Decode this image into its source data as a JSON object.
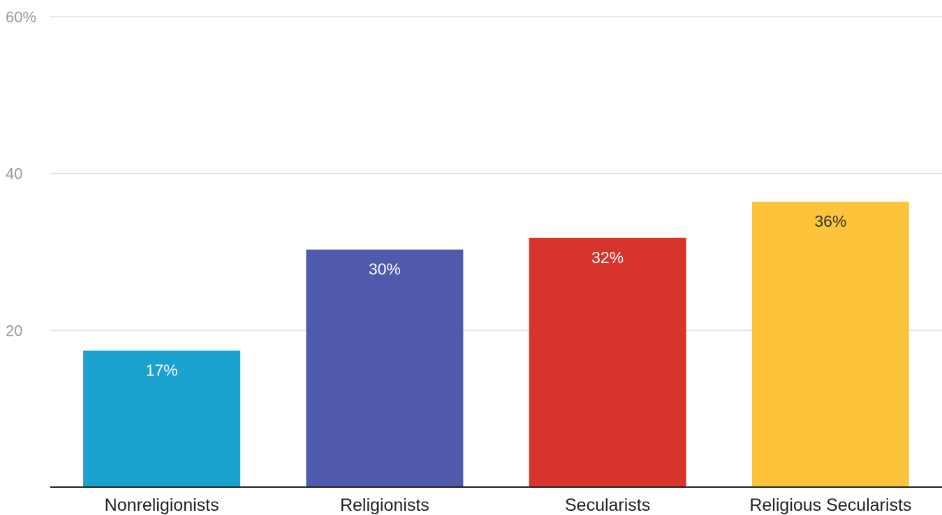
{
  "chart_data": {
    "type": "bar",
    "categories": [
      "Nonreligionists",
      "Religionists",
      "Secularists",
      "Religious Secularists"
    ],
    "values": [
      17.4,
      30.3,
      31.8,
      36.4
    ],
    "value_labels": [
      "17%",
      "30%",
      "32%",
      "36%"
    ],
    "colors": [
      "#1ba1ce",
      "#4f5aad",
      "#d7352b",
      "#fcc33b"
    ],
    "label_colors": [
      "#ffffff",
      "#ffffff",
      "#ffffff",
      "#333333"
    ],
    "y_ticks": [
      {
        "value": 20,
        "label": "20"
      },
      {
        "value": 40,
        "label": "40"
      },
      {
        "value": 60,
        "label": "60%"
      }
    ],
    "ylim": [
      0,
      60
    ],
    "grid": true,
    "title": "",
    "xlabel": "",
    "ylabel": ""
  }
}
